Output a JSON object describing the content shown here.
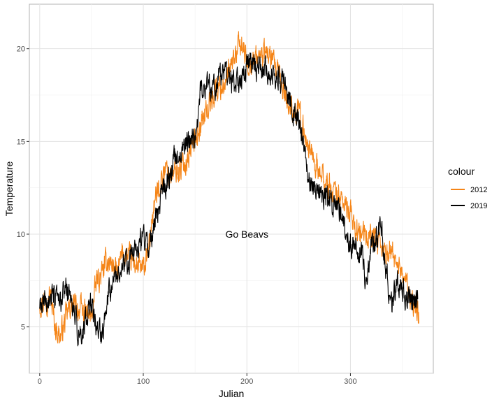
{
  "chart_data": {
    "type": "line",
    "title": "",
    "xlabel": "Julian",
    "ylabel": "Temperature",
    "xlim": [
      -10,
      380
    ],
    "ylim": [
      2.5,
      22.4
    ],
    "xticks": [
      0,
      100,
      200,
      300
    ],
    "yticks": [
      5,
      10,
      15,
      20
    ],
    "xtick_labels": [
      "0",
      "100",
      "200",
      "300"
    ],
    "ytick_labels": [
      "5",
      "10",
      "15",
      "20"
    ],
    "grid": true,
    "legend": {
      "title": "colour",
      "position": "right"
    },
    "annotation": {
      "text": "Go Beavs",
      "x": 200,
      "y": 10
    },
    "series": [
      {
        "name": "2012",
        "color": "#f58518",
        "x": [
          0,
          10,
          15,
          20,
          25,
          30,
          40,
          50,
          55,
          60,
          65,
          70,
          75,
          80,
          90,
          100,
          105,
          110,
          120,
          130,
          140,
          150,
          160,
          170,
          180,
          190,
          195,
          200,
          210,
          220,
          230,
          240,
          250,
          255,
          260,
          270,
          280,
          290,
          300,
          310,
          320,
          330,
          340,
          350,
          355,
          360,
          366
        ],
        "y": [
          6.3,
          6.8,
          5.0,
          4.5,
          5.4,
          6.2,
          5.9,
          5.5,
          7.5,
          7.8,
          8.6,
          8.4,
          7.8,
          9.0,
          8.5,
          8.0,
          9.0,
          11.5,
          13.5,
          13.2,
          13.8,
          15.2,
          16.5,
          17.8,
          18.2,
          19.8,
          20.3,
          19.2,
          19.5,
          19.8,
          18.6,
          17.0,
          16.5,
          15.5,
          14.8,
          13.2,
          12.5,
          12.0,
          11.0,
          9.8,
          10.0,
          9.0,
          9.0,
          8.0,
          7.2,
          6.3,
          5.5
        ]
      },
      {
        "name": "2019",
        "color": "#000000",
        "x": [
          0,
          5,
          10,
          20,
          25,
          30,
          35,
          40,
          45,
          50,
          55,
          60,
          65,
          70,
          80,
          90,
          95,
          100,
          105,
          110,
          115,
          120,
          130,
          140,
          150,
          155,
          160,
          170,
          180,
          185,
          190,
          200,
          210,
          220,
          230,
          240,
          250,
          255,
          260,
          270,
          280,
          290,
          300,
          310,
          315,
          320,
          330,
          335,
          340,
          345,
          350,
          355,
          360,
          365
        ],
        "y": [
          5.8,
          6.3,
          6.6,
          6.2,
          7.2,
          6.5,
          5.2,
          4.3,
          5.8,
          6.3,
          5.0,
          4.5,
          6.8,
          7.5,
          8.2,
          8.8,
          9.5,
          9.8,
          9.0,
          10.5,
          11.5,
          12.5,
          14.0,
          14.8,
          15.2,
          17.5,
          18.2,
          18.0,
          19.0,
          18.2,
          18.0,
          19.0,
          19.0,
          18.8,
          18.6,
          17.5,
          16.0,
          14.5,
          13.0,
          12.5,
          11.8,
          11.2,
          9.5,
          9.0,
          7.5,
          9.5,
          10.0,
          7.8,
          6.0,
          7.5,
          7.0,
          6.3,
          6.6,
          6.8
        ]
      }
    ]
  }
}
